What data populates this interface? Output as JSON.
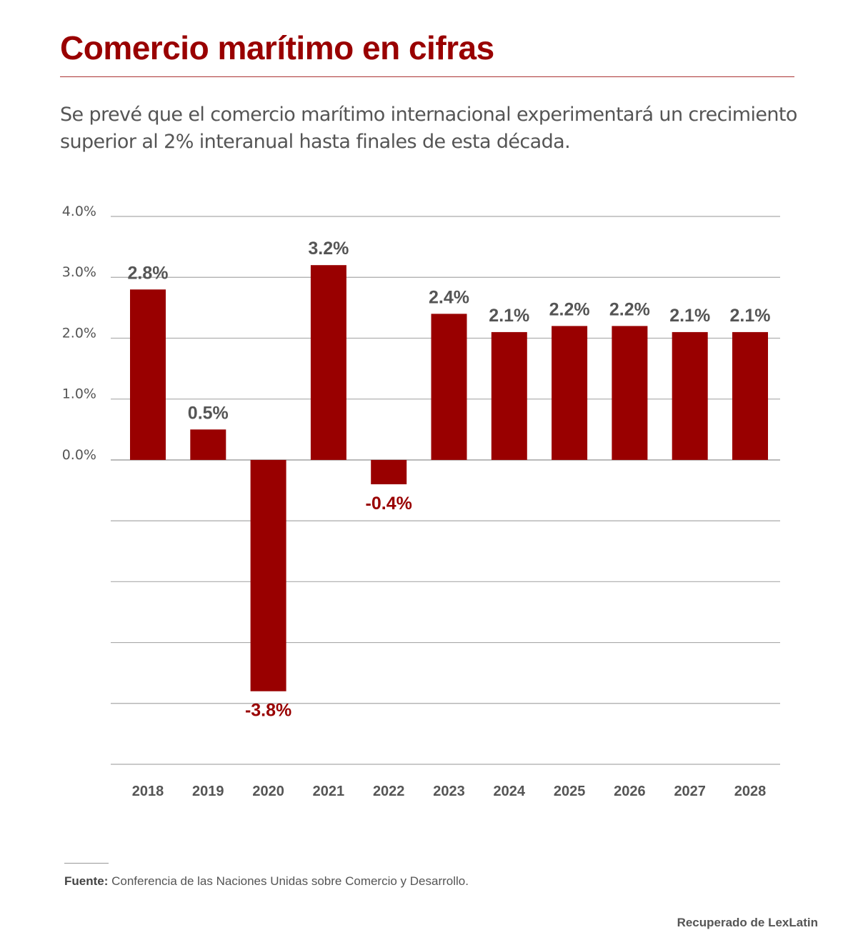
{
  "header": {
    "title": "Comercio marítimo en cifras",
    "subtitle": "Se prevé que el comercio marítimo internacional experimentará un crecimiento superior al 2% interanual hasta finales de esta década."
  },
  "footer": {
    "source_label": "Fuente:",
    "source_text": "Conferencia de las Naciones Unidas sobre Comercio y Desarrollo.",
    "credit": "Recuperado de LexLatin"
  },
  "chart_data": {
    "type": "bar",
    "title": "Comercio marítimo en cifras",
    "xlabel": "",
    "ylabel": "",
    "categories": [
      "2018",
      "2019",
      "2020",
      "2021",
      "2022",
      "2023",
      "2024",
      "2025",
      "2026",
      "2027",
      "2028"
    ],
    "values": [
      2.8,
      0.5,
      -3.8,
      3.2,
      -0.4,
      2.4,
      2.1,
      2.2,
      2.2,
      2.1,
      2.1
    ],
    "data_labels": [
      "2.8%",
      "0.5%",
      "-3.8%",
      "3.2%",
      "-0.4%",
      "2.4%",
      "2.1%",
      "2.2%",
      "2.2%",
      "2.1%",
      "2.1%"
    ],
    "ylim": [
      -5,
      4
    ],
    "yticks": [
      4,
      3,
      2,
      1,
      0,
      -1,
      -2,
      -3,
      -4,
      -5
    ],
    "ytick_labels": [
      "4.0%",
      "3.0%",
      "2.0%",
      "1.0%",
      "0.0%",
      "",
      "",
      "",
      "",
      ""
    ],
    "grid": true,
    "legend": "none",
    "colors": {
      "bar": "#990000",
      "positive_label": "#555555",
      "negative_label": "#990000",
      "grid": "#aaaaaa",
      "axis_text": "#555555"
    }
  }
}
